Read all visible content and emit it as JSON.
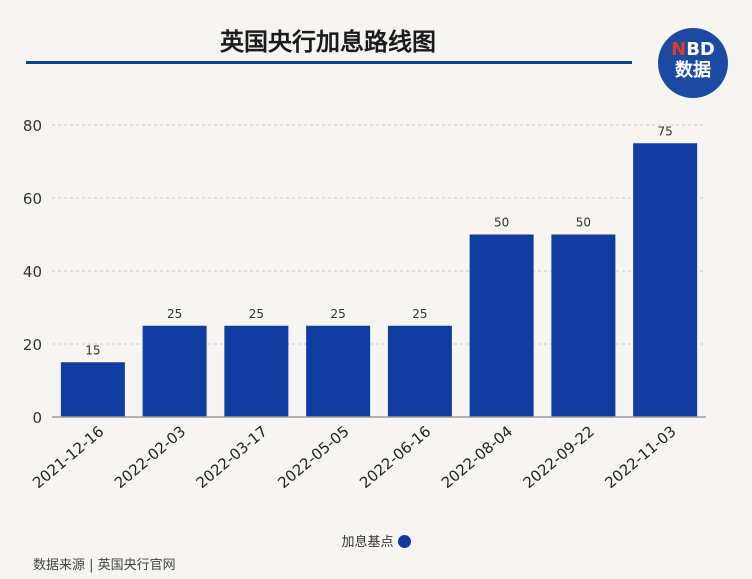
{
  "header": {
    "title": "英国央行加息路线图",
    "logo_brand_n": "N",
    "logo_brand_rest": "BD",
    "logo_sub": "数据"
  },
  "chart_data": {
    "type": "bar",
    "categories": [
      "2021-12-16",
      "2022-02-03",
      "2022-03-17",
      "2022-05-05",
      "2022-06-16",
      "2022-08-04",
      "2022-09-22",
      "2022-11-03"
    ],
    "series": [
      {
        "name": "加息基点",
        "values": [
          15,
          25,
          25,
          25,
          25,
          50,
          50,
          75
        ]
      }
    ],
    "ylim": [
      0,
      80
    ],
    "yticks": [
      0,
      20,
      40,
      60,
      80
    ],
    "grid": true,
    "legend": "bottom-center",
    "bar_color": "#0f3c9e"
  },
  "legend": {
    "label": "加息基点"
  },
  "source": "数据来源 | 英国央行官网"
}
